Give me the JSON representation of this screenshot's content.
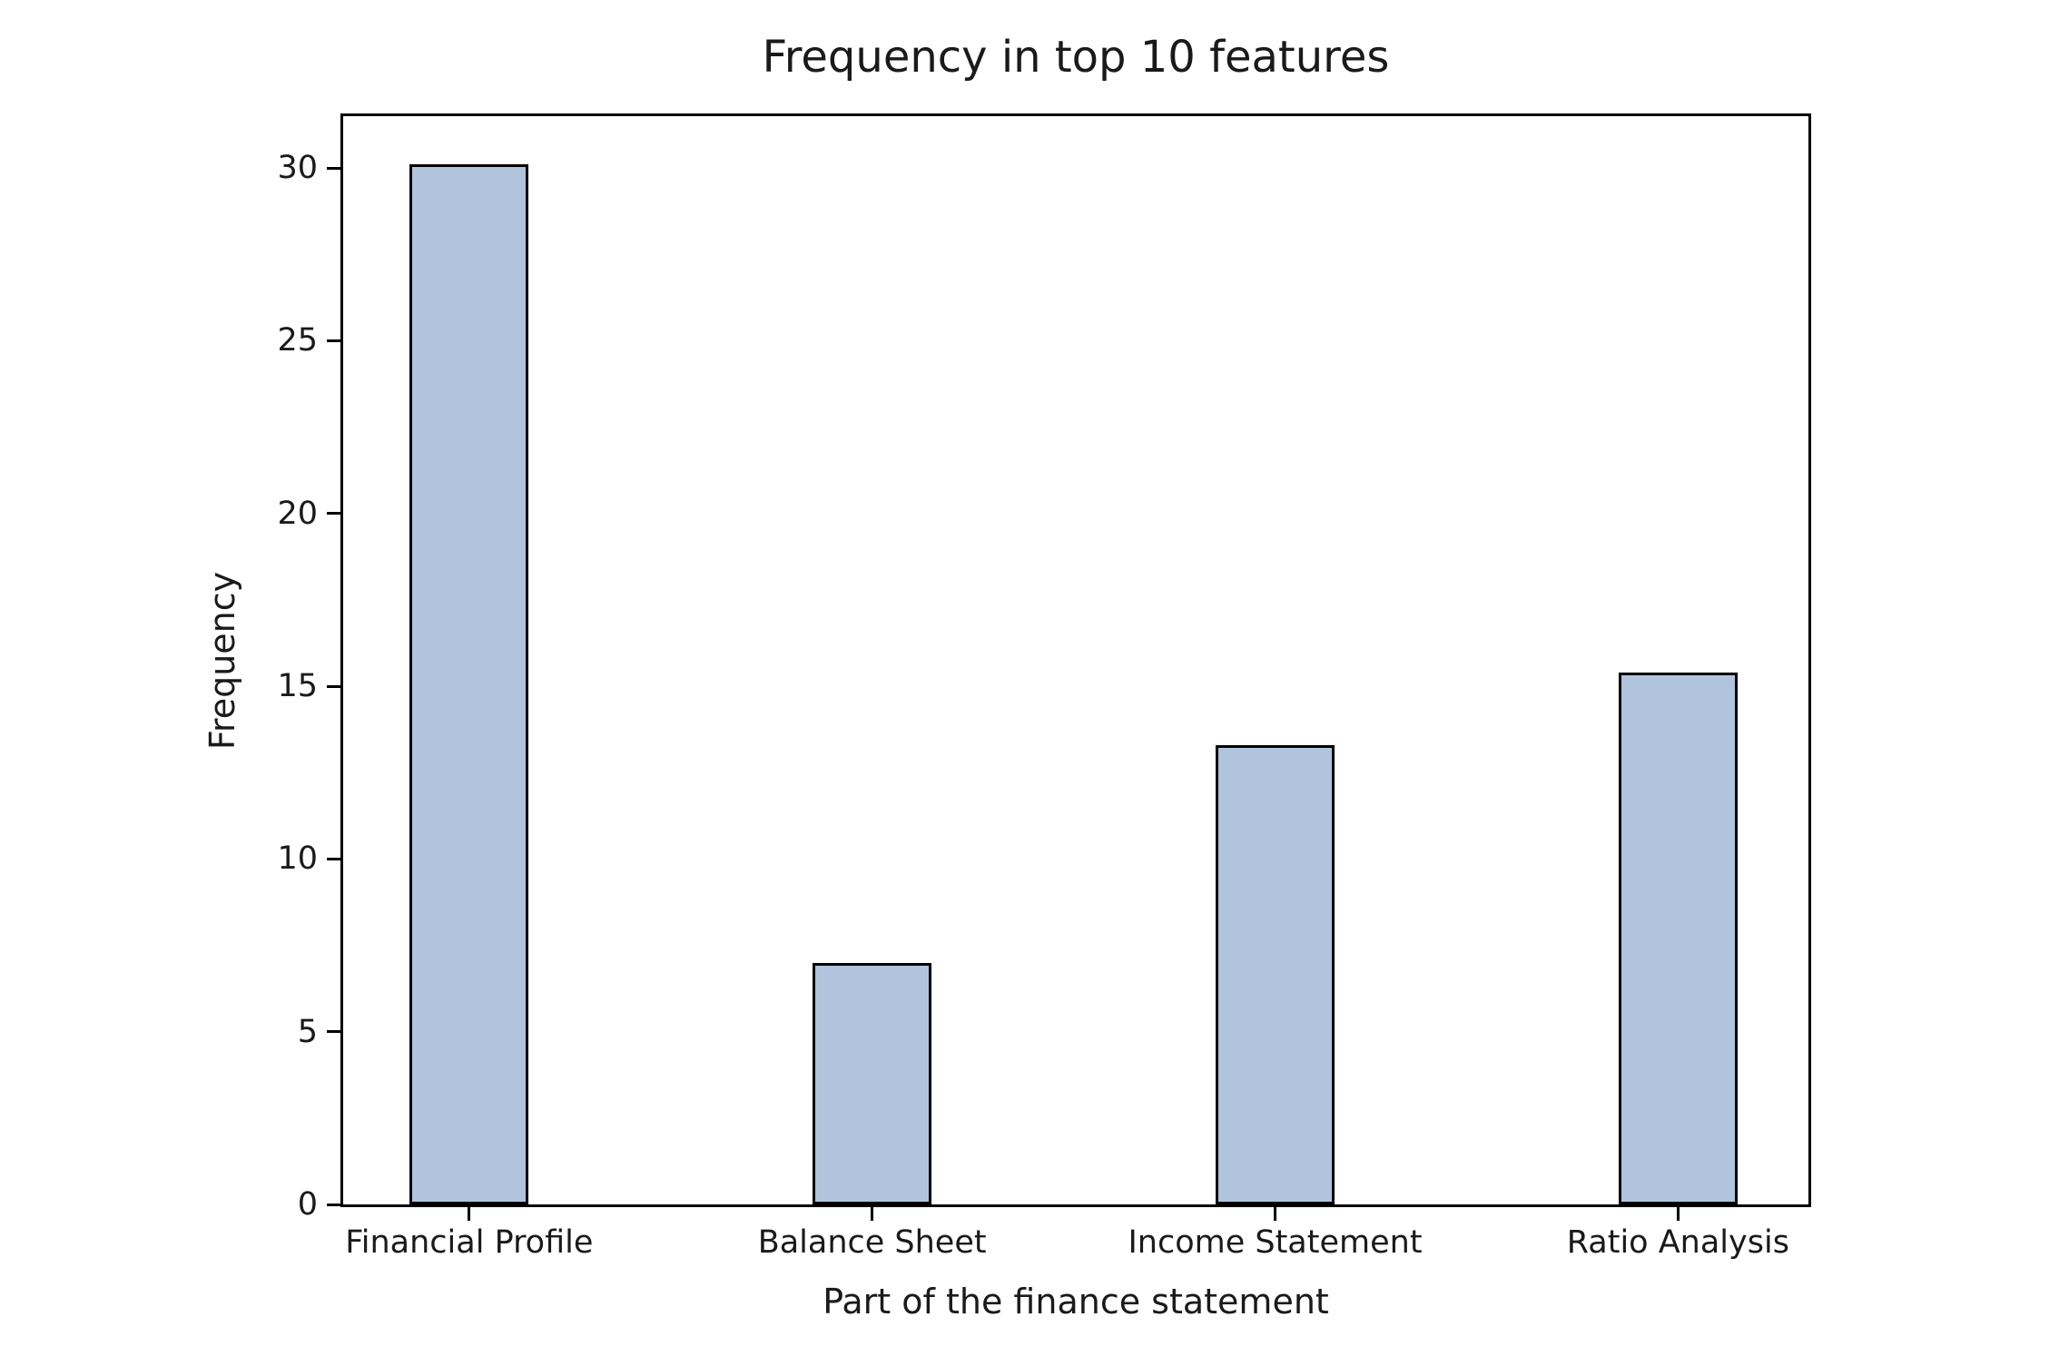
{
  "chart_data": {
    "type": "bar",
    "title": "Frequency in top 10 features",
    "xlabel": "Part of the finance statement",
    "ylabel": "Frequency",
    "categories": [
      "Financial Profile",
      "Balance Sheet",
      "Income Statement",
      "Ratio Analysis"
    ],
    "values": [
      30.1,
      7.0,
      13.3,
      15.4
    ],
    "ylim": [
      0,
      31.5
    ],
    "yticks": [
      0,
      5,
      10,
      15,
      20,
      25,
      30
    ],
    "grid": false,
    "legend": false,
    "bar_color": "#b0c4de",
    "bar_edge_color": "#000000",
    "background_color": "#ffffff",
    "layout": {
      "bar_centers_frac": [
        0.086,
        0.361,
        0.636,
        0.911
      ],
      "bar_width_frac": 0.081
    }
  }
}
